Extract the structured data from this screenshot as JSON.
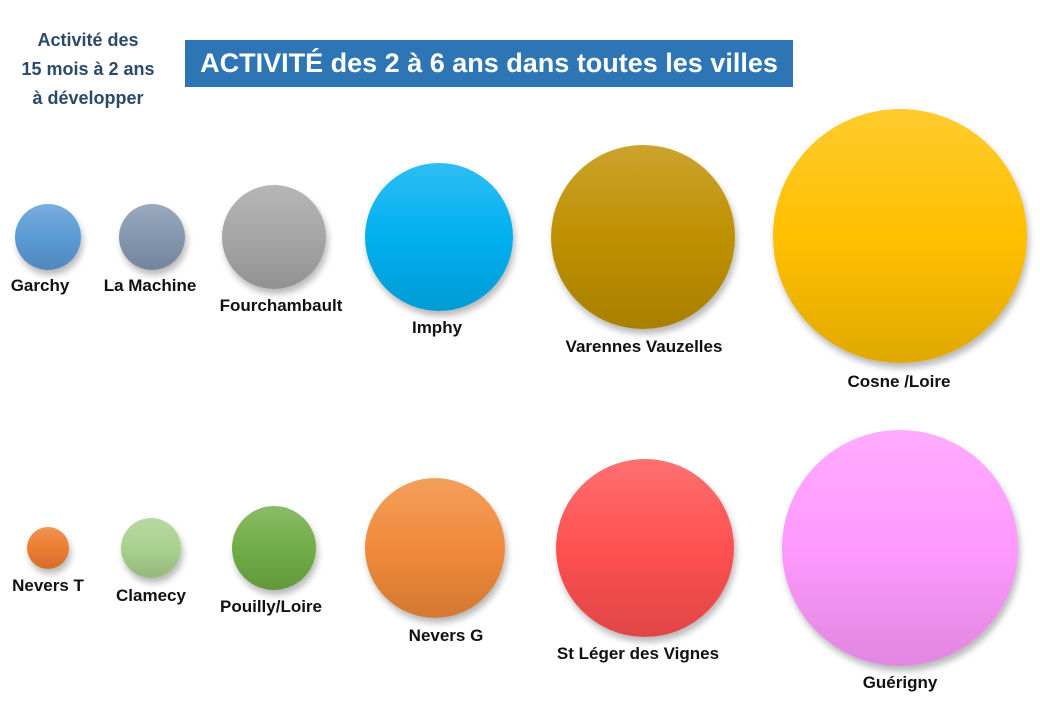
{
  "side_note": {
    "line1": "Activité des",
    "line2": "15 mois à 2 ans",
    "line3": "à développer"
  },
  "title": "ACTIVITÉ des 2 à 6 ans dans toutes les villes",
  "cities": [
    {
      "name": "Garchy",
      "color": "#5b9bd5"
    },
    {
      "name": "La Machine",
      "color": "#8497b0"
    },
    {
      "name": "Fourchambault",
      "color": "#a6a6a6"
    },
    {
      "name": "Imphy",
      "color": "#00b0f0"
    },
    {
      "name": "Varennes Vauzelles",
      "color": "#bf9000"
    },
    {
      "name": "Cosne /Loire",
      "color": "#ffc000"
    },
    {
      "name": "Nevers T",
      "color": "#ed7d31"
    },
    {
      "name": "Clamecy",
      "color": "#a9d18e"
    },
    {
      "name": "Pouilly/Loire",
      "color": "#70ad47"
    },
    {
      "name": "Nevers G",
      "color": "#f08a3a"
    },
    {
      "name": "St Léger des Vignes",
      "color": "#ff5050"
    },
    {
      "name": "Guérigny",
      "color": "#ff99ff"
    }
  ]
}
